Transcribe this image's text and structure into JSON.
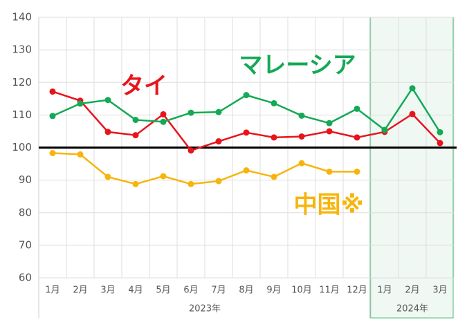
{
  "chart_data": {
    "type": "line",
    "categories": [
      "1月",
      "2月",
      "3月",
      "4月",
      "5月",
      "6月",
      "7月",
      "8月",
      "9月",
      "10月",
      "11月",
      "12月",
      "1月",
      "2月",
      "3月"
    ],
    "groups": [
      {
        "label": "2023年",
        "count": 12,
        "shaded": false
      },
      {
        "label": "2024年",
        "count": 3,
        "shaded": true
      }
    ],
    "series": [
      {
        "name": "タイ",
        "color": "#e8141c",
        "values": [
          117.2,
          114.4,
          104.8,
          103.8,
          110.2,
          99.1,
          101.9,
          104.6,
          103.1,
          103.4,
          105.0,
          103.1,
          104.8,
          110.3,
          101.4
        ]
      },
      {
        "name": "マレーシア",
        "color": "#13a955",
        "values": [
          109.7,
          113.5,
          114.6,
          108.5,
          107.9,
          110.7,
          110.9,
          116.1,
          113.6,
          109.8,
          107.5,
          111.9,
          105.4,
          118.2,
          104.7
        ]
      },
      {
        "name": "中国※",
        "color": "#f7b50c",
        "values": [
          98.3,
          97.9,
          91.0,
          88.8,
          91.2,
          88.8,
          89.7,
          93.0,
          91.0,
          95.2,
          92.6,
          92.6,
          null,
          null,
          null
        ]
      }
    ],
    "ylim": [
      60,
      140
    ],
    "yticks": [
      60,
      70,
      80,
      90,
      100,
      110,
      120,
      130,
      140
    ],
    "reference_line": 100,
    "grid": true
  }
}
